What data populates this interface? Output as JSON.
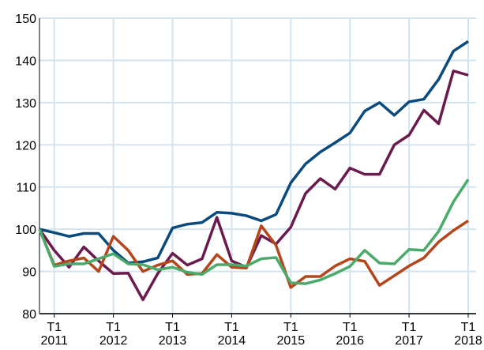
{
  "chart_data": {
    "type": "line",
    "categories": [
      null,
      "T1 2011",
      null,
      null,
      null,
      "T1 2012",
      null,
      null,
      null,
      "T1 2013",
      null,
      null,
      null,
      "T1 2014",
      null,
      null,
      null,
      "T1 2015",
      null,
      null,
      null,
      "T1 2016",
      null,
      null,
      null,
      "T1 2017",
      null,
      null,
      null,
      "T1 2018"
    ],
    "series": [
      {
        "color": "#0b4a7d",
        "values": [
          100,
          99.2,
          98.3,
          99,
          99,
          95,
          92,
          92.3,
          93.2,
          100.3,
          101.2,
          101.6,
          104,
          103.8,
          103.2,
          102,
          103.5,
          111,
          115.5,
          118.3,
          120.5,
          122.8,
          128,
          130,
          127,
          130.2,
          130.8,
          135.5,
          142.2,
          144.5
        ]
      },
      {
        "color": "#6b1a4d",
        "values": [
          100,
          95,
          91,
          95.8,
          92.5,
          89.5,
          89.6,
          83.3,
          89.5,
          94.3,
          91.5,
          93,
          102.8,
          92.5,
          91,
          98.5,
          96.5,
          100.5,
          108.5,
          112,
          109.5,
          114.5,
          113,
          113,
          120,
          122.3,
          128.2,
          125,
          137.5,
          136.5
        ]
      },
      {
        "color": "#b5451b",
        "values": [
          100,
          91.5,
          92.5,
          93.2,
          90,
          98.3,
          95,
          90,
          91.5,
          92.5,
          89.3,
          89.5,
          94,
          91,
          90.8,
          100.8,
          96.2,
          86.2,
          88.8,
          88.8,
          91.3,
          93,
          92.4,
          86.7,
          89,
          91.3,
          93.2,
          97,
          99.7,
          102
        ]
      },
      {
        "color": "#4aaa6a",
        "values": [
          100,
          91.2,
          91.8,
          91.8,
          93,
          94.2,
          91.8,
          91.6,
          90.4,
          91,
          89.8,
          89.3,
          91.6,
          91.6,
          91.3,
          93,
          93.3,
          87.3,
          87.1,
          88,
          89.5,
          91.2,
          95,
          92,
          91.8,
          95.2,
          95,
          99.5,
          106.5,
          111.8
        ]
      }
    ],
    "ylim": [
      80,
      150
    ],
    "yticks": [
      80,
      90,
      100,
      110,
      120,
      130,
      140,
      150
    ],
    "grid": true
  }
}
